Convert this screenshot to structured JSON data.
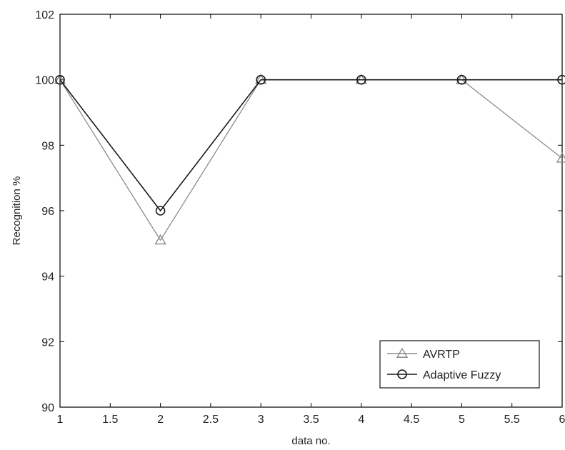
{
  "chart_data": {
    "type": "line",
    "title": "",
    "xlabel": "data no.",
    "ylabel": "Recognition %",
    "xlim": [
      1,
      6
    ],
    "ylim": [
      90,
      102
    ],
    "xticks": [
      1,
      1.5,
      2,
      2.5,
      3,
      3.5,
      4,
      4.5,
      5,
      5.5,
      6
    ],
    "yticks": [
      90,
      92,
      94,
      96,
      98,
      100,
      102
    ],
    "x": [
      1,
      2,
      3,
      4,
      5,
      6
    ],
    "grid": false,
    "legend_position": "bottom-right",
    "series": [
      {
        "name": "AVRTP",
        "marker": "triangle",
        "color": "#8c8c8c",
        "values": [
          100,
          95.1,
          100,
          100,
          100,
          97.6
        ]
      },
      {
        "name": "Adaptive Fuzzy",
        "marker": "circle",
        "color": "#1a1a1a",
        "values": [
          100,
          96,
          100,
          100,
          100,
          100
        ]
      }
    ]
  }
}
